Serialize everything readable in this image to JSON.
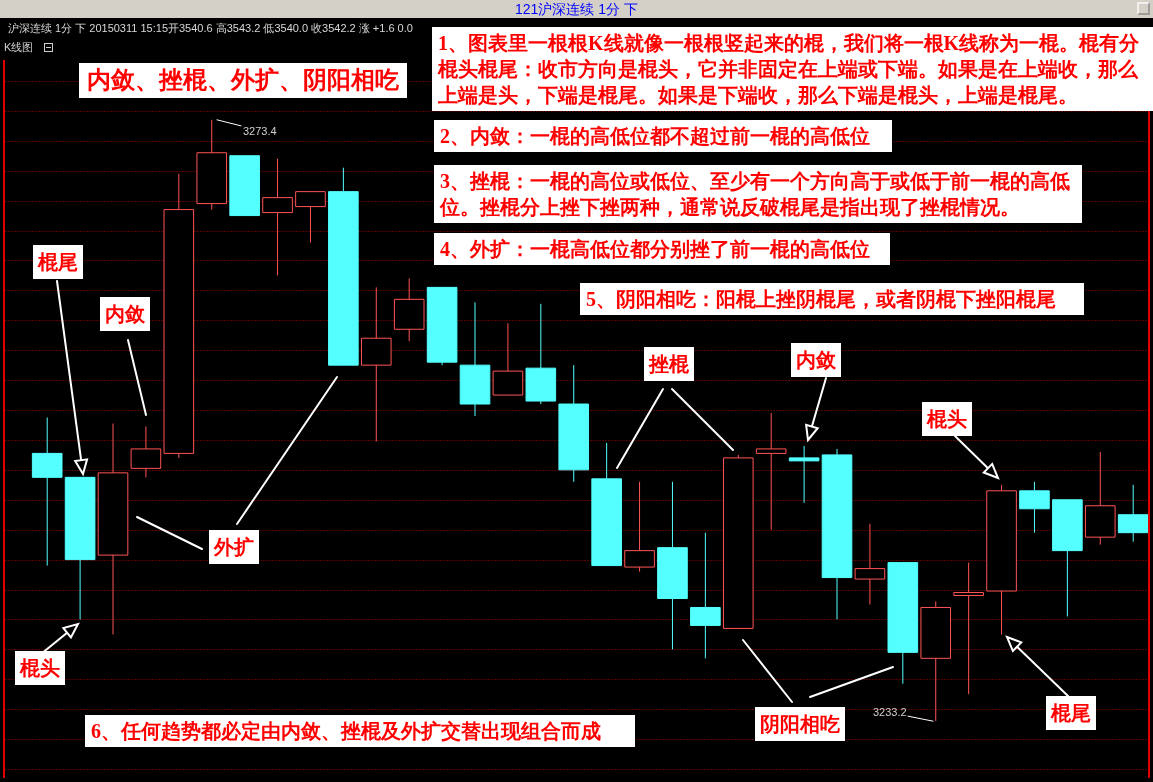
{
  "chart_data": {
    "type": "candlestick",
    "title": "121沪深连续 1分 下",
    "subtitle": "沪深连续 1分 下 20150311 15:15开3540.6 高3543.2 低3540.0 收3542.2 涨 +1.6 0.0",
    "categories": [
      null,
      null,
      null,
      null,
      null,
      null,
      null,
      null,
      null,
      null,
      null,
      null,
      null,
      null,
      null,
      null,
      null,
      null,
      null,
      null,
      null,
      null,
      null,
      null,
      null,
      null,
      null,
      null,
      null,
      null,
      null,
      null,
      null,
      null
    ],
    "ohlc": [
      [
        3251.1,
        3253.5,
        3243.6,
        3249.5
      ],
      [
        3249.5,
        3249.5,
        3240.0,
        3244.0
      ],
      [
        3244.3,
        3253.1,
        3239.0,
        3249.8
      ],
      [
        3250.1,
        3252.9,
        3249.5,
        3251.4
      ],
      [
        3251.1,
        3269.8,
        3250.8,
        3267.4
      ],
      [
        3267.8,
        3273.4,
        3267.4,
        3271.2
      ],
      [
        3271.0,
        3271.0,
        3267.0,
        3267.0
      ],
      [
        3267.2,
        3270.8,
        3263.0,
        3268.2
      ],
      [
        3267.6,
        3268.6,
        3265.2,
        3268.6
      ],
      [
        3268.6,
        3270.2,
        3257.0,
        3257.0
      ],
      [
        3257.0,
        3262.2,
        3251.9,
        3258.8
      ],
      [
        3259.4,
        3262.8,
        3258.6,
        3261.4
      ],
      [
        3262.2,
        3262.2,
        3257.0,
        3257.2
      ],
      [
        3257.0,
        3261.2,
        3253.6,
        3254.4
      ],
      [
        3255.0,
        3259.8,
        3255.0,
        3256.6
      ],
      [
        3256.8,
        3261.1,
        3254.4,
        3254.6
      ],
      [
        3254.4,
        3257.0,
        3249.2,
        3250.0
      ],
      [
        3249.4,
        3251.8,
        3243.6,
        3243.6
      ],
      [
        3243.5,
        3249.2,
        3243.2,
        3244.6
      ],
      [
        3244.8,
        3249.2,
        3238.0,
        3241.4
      ],
      [
        3240.8,
        3245.8,
        3237.4,
        3239.6
      ],
      [
        3239.4,
        3251.0,
        3239.4,
        3250.8
      ],
      [
        3251.1,
        3253.8,
        3246.0,
        3251.4
      ],
      [
        3250.8,
        3251.6,
        3247.8,
        3250.6
      ],
      [
        3251.0,
        3251.4,
        3240.0,
        3242.8
      ],
      [
        3242.7,
        3246.4,
        3241.0,
        3243.4
      ],
      [
        3243.8,
        3243.8,
        3235.7,
        3237.8
      ],
      [
        3237.4,
        3241.2,
        3233.2,
        3240.8
      ],
      [
        3241.6,
        3243.8,
        3235.0,
        3241.8
      ],
      [
        3241.9,
        3249.0,
        3239.0,
        3248.6
      ],
      [
        3248.6,
        3249.2,
        3245.8,
        3247.4
      ],
      [
        3248.0,
        3248.0,
        3240.2,
        3244.6
      ],
      [
        3245.5,
        3251.2,
        3245.0,
        3247.6
      ],
      [
        3247.0,
        3249.0,
        3245.2,
        3245.8
      ]
    ],
    "colors": [
      "#54ffff",
      "#54ffff",
      "#ff5454",
      "#ff5454",
      "#ff5454",
      "#ff5454",
      "#54ffff",
      "#ff5454",
      "#ff5454",
      "#54ffff",
      "#ff5454",
      "#ff5454",
      "#54ffff",
      "#54ffff",
      "#ff5454",
      "#54ffff",
      "#54ffff",
      "#54ffff",
      "#ff5454",
      "#54ffff",
      "#54ffff",
      "#ff5454",
      "#ff5454",
      "#54ffff",
      "#54ffff",
      "#ff5454",
      "#54ffff",
      "#ff5454",
      "#ff5454",
      "#ff5454",
      "#54ffff",
      "#54ffff",
      "#ff5454",
      "#54ffff"
    ],
    "ylim": [
      3229.4,
      3277.4
    ],
    "yticks": [
      {
        "value": 3230,
        "label": null
      },
      {
        "value": 3232,
        "label": null
      },
      {
        "value": 3234,
        "label": null
      },
      {
        "value": 3236,
        "label": null
      },
      {
        "value": 3238,
        "label": null
      },
      {
        "value": 3240,
        "label": null
      },
      {
        "value": 3242,
        "label": null
      },
      {
        "value": 3244,
        "label": null
      },
      {
        "value": 3246,
        "label": null
      },
      {
        "value": 3248,
        "label": null
      },
      {
        "value": 3250,
        "label": null
      },
      {
        "value": 3252,
        "label": null
      },
      {
        "value": 3254,
        "label": null
      },
      {
        "value": 3256,
        "label": null
      },
      {
        "value": 3258,
        "label": null
      },
      {
        "value": 3260,
        "label": null
      },
      {
        "value": 3262,
        "label": null
      },
      {
        "value": 3264,
        "label": null
      },
      {
        "value": 3266,
        "label": null
      },
      {
        "value": 3268,
        "label": null
      },
      {
        "value": 3270,
        "label": null
      },
      {
        "value": 3272,
        "label": null
      },
      {
        "value": 3274,
        "label": null
      },
      {
        "value": 3276,
        "label": null
      }
    ],
    "grid": "y",
    "annotations": [
      "内敛、挫棍、外扩、阴阳相吃",
      "1、图表里一根根K线就像一根根竖起来的棍，我们将一根K线称为一棍。棍有分棍头棍尾：收市方向是棍头，它并非固定在上端或下端。如果是在上端收，那么上端是头，下端是棍尾。如果是下端收，那么下端是棍头，上端是棍尾。",
      "2、内敛：一棍的高低位都不超过前一棍的高低位",
      "3、挫棍：一棍的高位或低位、至少有一个方向高于或低于前一棍的高低位。挫棍分上挫下挫两种，通常说反破棍尾是指出现了挫棍情况。",
      "4、外扩：一棍高低位都分别挫了前一棍的高低位",
      "5、阴阳相吃：阳棍上挫阴棍尾，或者阴棍下挫阳棍尾",
      "6、任何趋势都必定由内敛、挫棍及外扩交替出现组合而成",
      "棍尾",
      "内敛",
      "棍头",
      "外扩",
      "挫棍",
      "内敛",
      "阴阳相吃",
      "棍头",
      "棍尾",
      "3273.4",
      "3233.2",
      "K线图"
    ]
  }
}
